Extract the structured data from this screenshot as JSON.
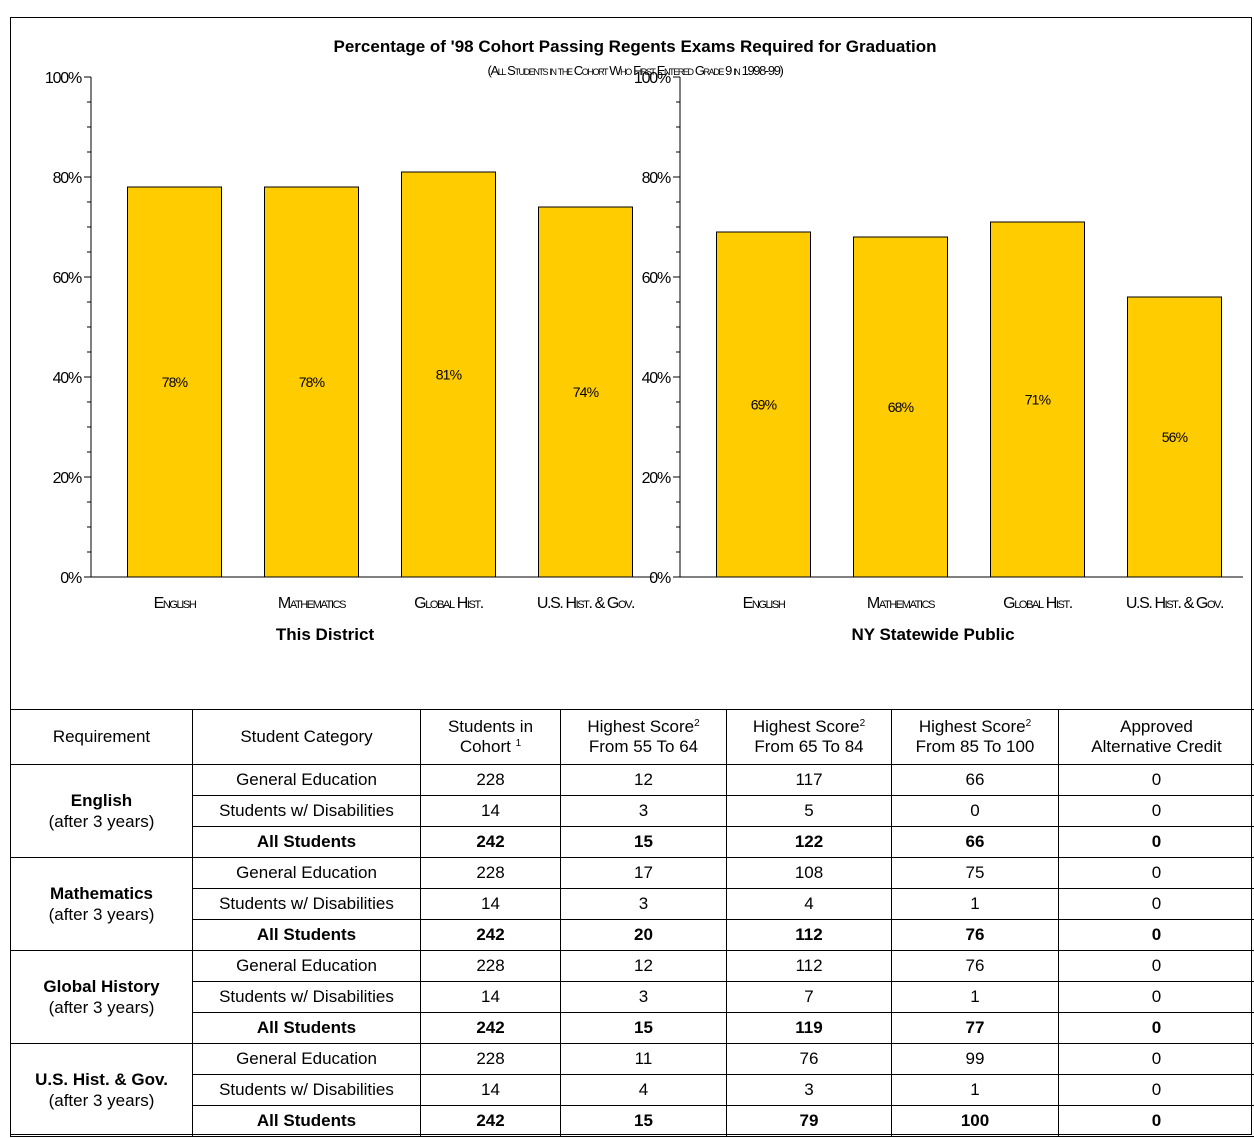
{
  "chart_data": {
    "type": "bar",
    "title": "Percentage of '98 Cohort Passing Regents Exams Required for Graduation",
    "subtitle": "(All Students in the Cohort Who First Entered Grade 9 in 1998-99)",
    "ylim": [
      0,
      100
    ],
    "ytick_labels": [
      "0%",
      "20%",
      "40%",
      "60%",
      "80%",
      "100%"
    ],
    "ytick_values": [
      0,
      20,
      40,
      60,
      80,
      100
    ],
    "bar_color": "#FFCC00",
    "categories": [
      "English",
      "Mathematics",
      "Global Hist.",
      "U.S. Hist. & Gov."
    ],
    "panels": [
      {
        "xlabel": "This District",
        "values": [
          78,
          78,
          81,
          74
        ],
        "data_labels": [
          "78%",
          "78%",
          "81%",
          "74%"
        ]
      },
      {
        "xlabel": "NY Statewide Public",
        "values": [
          69,
          68,
          71,
          56
        ],
        "data_labels": [
          "69%",
          "68%",
          "71%",
          "56%"
        ]
      }
    ]
  },
  "table": {
    "headers": {
      "requirement": "Requirement",
      "category": "Student Category",
      "cohort_line1": "Students in",
      "cohort_line2": "Cohort",
      "cohort_sup": "1",
      "s55_line1": "Highest Score",
      "s55_line2": "From 55 To 64",
      "s65_line1": "Highest Score",
      "s65_line2": "From 65 To 84",
      "s85_line1": "Highest Score",
      "s85_line2": "From 85 To 100",
      "score_sup": "2",
      "alt_line1": "Approved",
      "alt_line2": "Alternative  Credit"
    },
    "groups": [
      {
        "name": "English",
        "sub": "(after 3 years)",
        "rows": [
          [
            "General Education",
            "228",
            "12",
            "117",
            "66",
            "0"
          ],
          [
            "Students w/ Disabilities",
            "14",
            "3",
            "5",
            "0",
            "0"
          ],
          [
            "All Students",
            "242",
            "15",
            "122",
            "66",
            "0"
          ]
        ]
      },
      {
        "name": "Mathematics",
        "sub": "(after 3 years)",
        "rows": [
          [
            "General Education",
            "228",
            "17",
            "108",
            "75",
            "0"
          ],
          [
            "Students w/ Disabilities",
            "14",
            "3",
            "4",
            "1",
            "0"
          ],
          [
            "All Students",
            "242",
            "20",
            "112",
            "76",
            "0"
          ]
        ]
      },
      {
        "name": "Global History",
        "sub": "(after 3 years)",
        "rows": [
          [
            "General Education",
            "228",
            "12",
            "112",
            "76",
            "0"
          ],
          [
            "Students w/ Disabilities",
            "14",
            "3",
            "7",
            "1",
            "0"
          ],
          [
            "All Students",
            "242",
            "15",
            "119",
            "77",
            "0"
          ]
        ]
      },
      {
        "name": "U.S. Hist. & Gov.",
        "sub": "(after 3 years)",
        "rows": [
          [
            "General Education",
            "228",
            "11",
            "76",
            "99",
            "0"
          ],
          [
            "Students w/ Disabilities",
            "14",
            "4",
            "3",
            "1",
            "0"
          ],
          [
            "All Students",
            "242",
            "15",
            "79",
            "100",
            "0"
          ]
        ]
      }
    ]
  }
}
